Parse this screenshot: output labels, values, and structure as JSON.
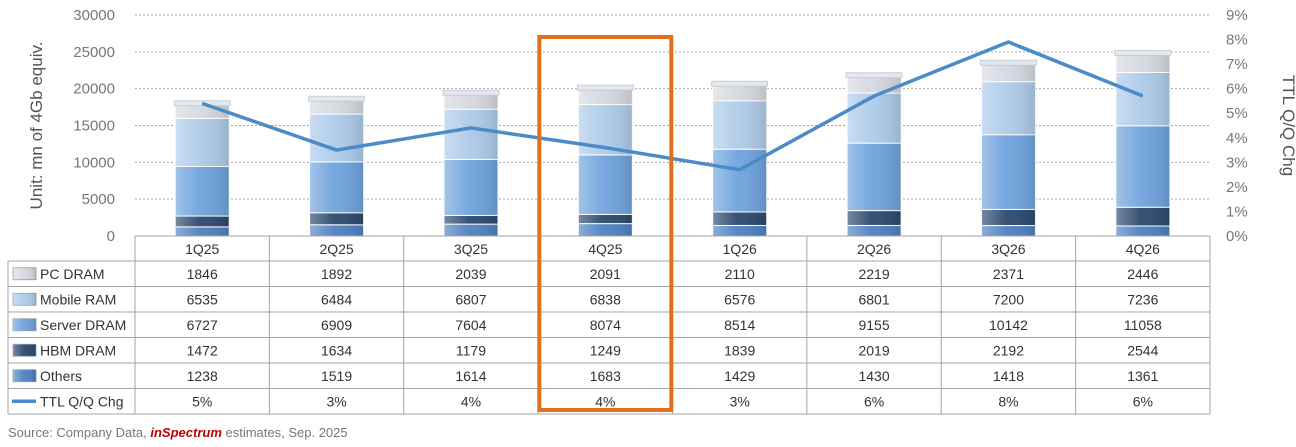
{
  "chart_data": {
    "type": "bar",
    "stacked": true,
    "categories": [
      "1Q25",
      "2Q25",
      "3Q25",
      "4Q25",
      "1Q26",
      "2Q26",
      "3Q26",
      "4Q26"
    ],
    "series": [
      {
        "name": "Others",
        "values": [
          1238,
          1519,
          1614,
          1683,
          1429,
          1430,
          1418,
          1361
        ],
        "color": "#4f81c0"
      },
      {
        "name": "HBM DRAM",
        "values": [
          1472,
          1634,
          1179,
          1249,
          1839,
          2019,
          2192,
          2544
        ],
        "color": "#2c4a6e"
      },
      {
        "name": "Server DRAM",
        "values": [
          6727,
          6909,
          7604,
          8074,
          8514,
          9155,
          10142,
          11058
        ],
        "color": "#6fa3dd"
      },
      {
        "name": "Mobile RAM",
        "values": [
          6535,
          6484,
          6807,
          6838,
          6576,
          6801,
          7200,
          7236
        ],
        "color": "#aecbea"
      },
      {
        "name": "PC DRAM",
        "values": [
          1846,
          1892,
          2039,
          2091,
          2110,
          2219,
          2371,
          2446
        ],
        "color": "#d5d9e0"
      }
    ],
    "line_series": {
      "name": "TTL Q/Q Chg",
      "values": [
        5.4,
        3.5,
        4.4,
        3.6,
        2.7,
        5.7,
        7.9,
        5.7
      ],
      "labels": [
        "5%",
        "3%",
        "4%",
        "4%",
        "3%",
        "6%",
        "8%",
        "6%"
      ],
      "color": "#4a8bc8"
    },
    "table_row_order": [
      "PC DRAM",
      "Mobile RAM",
      "Server DRAM",
      "HBM DRAM",
      "Others",
      "TTL Q/Q Chg"
    ],
    "ylabel": "Unit: mn of 4Gb equiv.",
    "y2label": "TTL Q/Q Chg",
    "ylim": [
      0,
      30000
    ],
    "y2lim": [
      0,
      9
    ],
    "yticks": [
      "0",
      "5000",
      "10000",
      "15000",
      "20000",
      "25000",
      "30000"
    ],
    "y2ticks": [
      "0%",
      "1%",
      "2%",
      "3%",
      "4%",
      "5%",
      "6%",
      "7%",
      "8%",
      "9%"
    ],
    "grid": true,
    "highlight_category": "4Q25",
    "highlight_color": "#e07020",
    "legend": "data-table"
  },
  "source": {
    "prefix": "Source: Company Data, ",
    "brand": "inSpectrum",
    "suffix": " estimates, Sep. 2025"
  }
}
